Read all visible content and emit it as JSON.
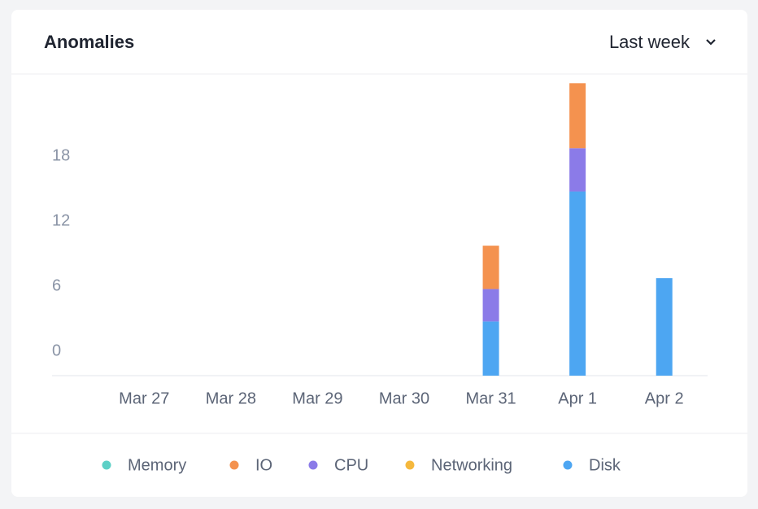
{
  "header": {
    "title": "Anomalies",
    "range": "Last week"
  },
  "chart_data": {
    "type": "stacked-bar",
    "categories": [
      "Mar 27",
      "Mar 28",
      "Mar 29",
      "Mar 30",
      "Mar 31",
      "Apr 1",
      "Apr 2"
    ],
    "series": [
      {
        "name": "Memory",
        "color": "#5dd0c6",
        "values": [
          0,
          0,
          0,
          0,
          0,
          0,
          0
        ]
      },
      {
        "name": "IO",
        "color": "#f4924f",
        "values": [
          0,
          0,
          0,
          0,
          4,
          6,
          0
        ]
      },
      {
        "name": "CPU",
        "color": "#8b7be8",
        "values": [
          0,
          0,
          0,
          0,
          3,
          4,
          0
        ]
      },
      {
        "name": "Networking",
        "color": "#f5b83d",
        "values": [
          0,
          0,
          0,
          0,
          0,
          0,
          0
        ]
      },
      {
        "name": "Disk",
        "color": "#4da6f2",
        "values": [
          0,
          0,
          0,
          0,
          5,
          17,
          9
        ]
      }
    ],
    "ylim": [
      0,
      28
    ],
    "yticks": [
      0,
      6,
      12,
      18
    ],
    "grid": false
  }
}
